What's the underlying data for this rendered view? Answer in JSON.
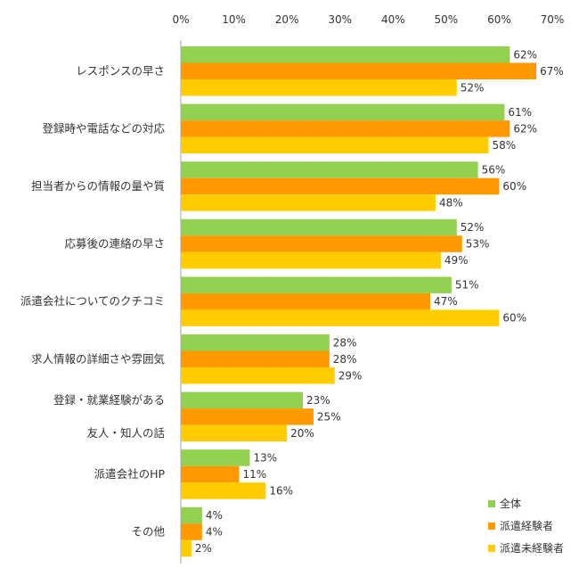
{
  "chart_data": {
    "type": "bar",
    "orientation": "horizontal",
    "categories": [
      [
        "レスポンスの早さ"
      ],
      [
        "登録時や電話などの対応"
      ],
      [
        "担当者からの情報の量や質"
      ],
      [
        "応募後の連絡の早さ"
      ],
      [
        "派遣会社についてのクチコミ"
      ],
      [
        "求人情報の詳細さや雰囲気"
      ],
      [
        "登録・就業経験がある",
        "友人・知人の話"
      ],
      [
        "派遣会社のHP"
      ],
      [
        "その他"
      ]
    ],
    "series": [
      {
        "name": "全体",
        "color": "#92d050",
        "values": [
          62,
          61,
          56,
          52,
          51,
          28,
          23,
          13,
          4
        ]
      },
      {
        "name": "派遣経験者",
        "color": "#ff9900",
        "values": [
          67,
          62,
          60,
          53,
          47,
          28,
          25,
          11,
          4
        ]
      },
      {
        "name": "派遣未経験者",
        "color": "#ffcc00",
        "values": [
          52,
          58,
          48,
          49,
          60,
          29,
          20,
          16,
          2
        ]
      }
    ],
    "xlim": [
      0,
      70
    ],
    "ticks": [
      0,
      10,
      20,
      30,
      40,
      50,
      60,
      70
    ],
    "tick_suffix": "%",
    "value_suffix": "%",
    "legend_position": "bottom-right",
    "grid": false
  }
}
